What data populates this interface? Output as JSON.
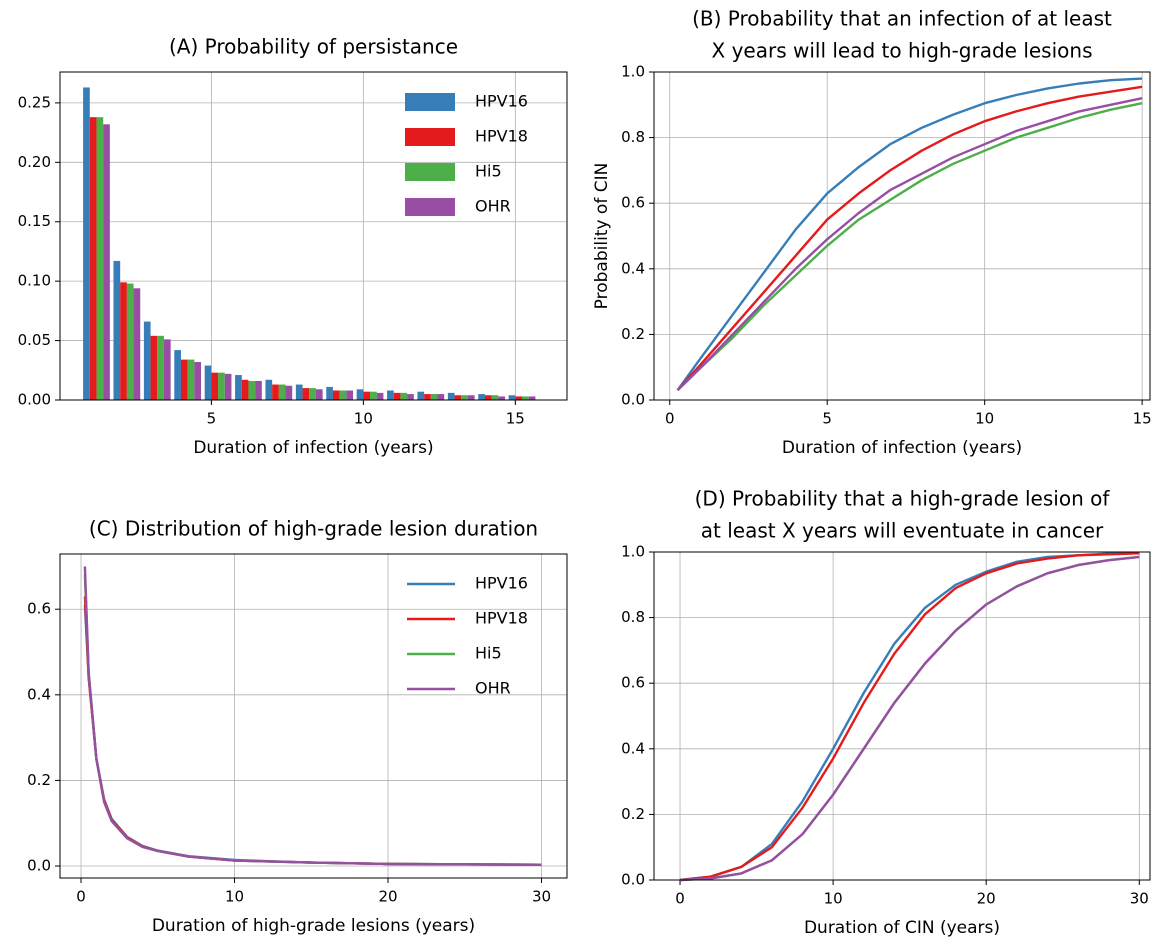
{
  "chart_data": [
    {
      "type": "bar",
      "title": "(A) Probability of persistance",
      "xlabel": "Duration of infection (years)",
      "x": [
        1,
        2,
        3,
        4,
        5,
        6,
        7,
        8,
        9,
        10,
        11,
        12,
        13,
        14,
        15
      ],
      "series": [
        {
          "name": "HPV16",
          "color": "#377eb8",
          "values": [
            0.263,
            0.117,
            0.066,
            0.042,
            0.029,
            0.021,
            0.017,
            0.013,
            0.011,
            0.009,
            0.008,
            0.007,
            0.006,
            0.005,
            0.004
          ]
        },
        {
          "name": "HPV18",
          "color": "#e41a1c",
          "values": [
            0.238,
            0.099,
            0.054,
            0.034,
            0.023,
            0.017,
            0.013,
            0.01,
            0.008,
            0.007,
            0.006,
            0.005,
            0.004,
            0.004,
            0.003
          ]
        },
        {
          "name": "Hi5",
          "color": "#4daf4a",
          "values": [
            0.238,
            0.098,
            0.054,
            0.034,
            0.023,
            0.016,
            0.013,
            0.01,
            0.008,
            0.007,
            0.006,
            0.005,
            0.004,
            0.004,
            0.003
          ]
        },
        {
          "name": "OHR",
          "color": "#984ea3",
          "values": [
            0.232,
            0.094,
            0.051,
            0.032,
            0.022,
            0.016,
            0.012,
            0.009,
            0.008,
            0.006,
            0.005,
            0.005,
            0.004,
            0.003,
            0.003
          ]
        }
      ],
      "xlim": [
        0.02,
        16.7
      ],
      "ylim": [
        0,
        0.276
      ],
      "xticks": [
        5,
        10,
        15
      ],
      "yticks": [
        {
          "value": 0,
          "label": "0.00"
        },
        {
          "value": 0.05,
          "label": "0.05"
        },
        {
          "value": 0.1,
          "label": "0.10"
        },
        {
          "value": 0.15,
          "label": "0.15"
        },
        {
          "value": 0.2,
          "label": "0.20"
        },
        {
          "value": 0.25,
          "label": "0.25"
        }
      ],
      "grid": true,
      "legend": "upper right"
    },
    {
      "type": "line",
      "title": [
        "(B) Probability that an infection of at least",
        "X years will lead to high-grade lesions"
      ],
      "xlabel": "Duration of infection (years)",
      "ylabel": "Probability of CIN",
      "x": [
        0.25,
        1,
        2,
        3,
        4,
        5,
        6,
        7,
        8,
        9,
        10,
        11,
        12,
        13,
        14,
        15
      ],
      "series": [
        {
          "name": "HPV16",
          "color": "#377eb8",
          "values": [
            0.03,
            0.13,
            0.26,
            0.39,
            0.52,
            0.63,
            0.71,
            0.78,
            0.83,
            0.87,
            0.905,
            0.93,
            0.95,
            0.965,
            0.975,
            0.98
          ]
        },
        {
          "name": "HPV18",
          "color": "#e41a1c",
          "values": [
            0.03,
            0.11,
            0.22,
            0.33,
            0.44,
            0.55,
            0.63,
            0.7,
            0.76,
            0.81,
            0.85,
            0.88,
            0.905,
            0.925,
            0.94,
            0.955
          ]
        },
        {
          "name": "Hi5",
          "color": "#4daf4a",
          "values": [
            0.03,
            0.1,
            0.19,
            0.29,
            0.38,
            0.47,
            0.55,
            0.61,
            0.67,
            0.72,
            0.76,
            0.8,
            0.83,
            0.86,
            0.885,
            0.905
          ]
        },
        {
          "name": "OHR",
          "color": "#984ea3",
          "values": [
            0.03,
            0.1,
            0.2,
            0.3,
            0.4,
            0.49,
            0.57,
            0.64,
            0.69,
            0.74,
            0.78,
            0.82,
            0.85,
            0.88,
            0.9,
            0.92
          ]
        }
      ],
      "xlim": [
        -0.5,
        15.25
      ],
      "ylim": [
        0,
        1
      ],
      "xticks": [
        0,
        5,
        10,
        15
      ],
      "yticks": [
        {
          "value": 0,
          "label": "0.0"
        },
        0.2,
        0.4,
        0.6,
        0.8,
        {
          "value": 1,
          "label": "1.0"
        }
      ],
      "grid": true
    },
    {
      "type": "line",
      "title": "(C) Distribution of high-grade lesion duration",
      "xlabel": "Duration of high-grade lesions (years)",
      "x": [
        0.25,
        0.5,
        1,
        1.5,
        2,
        3,
        4,
        5,
        7,
        10,
        15,
        20,
        25,
        30
      ],
      "series": [
        {
          "name": "HPV16",
          "color": "#377eb8",
          "values": [
            0.61,
            0.44,
            0.25,
            0.155,
            0.11,
            0.068,
            0.047,
            0.036,
            0.023,
            0.014,
            0.008,
            0.005,
            0.004,
            0.003
          ]
        },
        {
          "name": "HPV18",
          "color": "#e41a1c",
          "values": [
            0.63,
            0.44,
            0.25,
            0.155,
            0.108,
            0.067,
            0.046,
            0.035,
            0.022,
            0.013,
            0.008,
            0.005,
            0.004,
            0.003
          ]
        },
        {
          "name": "Hi5",
          "color": "#4daf4a",
          "values": [
            0.68,
            0.45,
            0.25,
            0.15,
            0.105,
            0.065,
            0.045,
            0.035,
            0.022,
            0.013,
            0.008,
            0.005,
            0.004,
            0.003
          ]
        },
        {
          "name": "OHR",
          "color": "#984ea3",
          "values": [
            0.7,
            0.45,
            0.25,
            0.15,
            0.105,
            0.065,
            0.045,
            0.035,
            0.022,
            0.013,
            0.008,
            0.005,
            0.004,
            0.003
          ]
        }
      ],
      "xlim": [
        -1.37,
        31.66
      ],
      "ylim": [
        -0.028,
        0.729
      ],
      "xticks": [
        0,
        10,
        20,
        30
      ],
      "yticks": [
        {
          "value": 0,
          "label": "0.0"
        },
        0.2,
        0.4,
        0.6
      ],
      "grid": true,
      "legend": "upper right"
    },
    {
      "type": "line",
      "title": [
        "(D) Probability that a high-grade lesion of",
        "at least X years will eventuate in cancer"
      ],
      "xlabel": "Duration of CIN (years)",
      "x": [
        0,
        2,
        4,
        6,
        8,
        10,
        12,
        14,
        16,
        18,
        20,
        22,
        24,
        26,
        28,
        30
      ],
      "series": [
        {
          "name": "HPV16",
          "color": "#377eb8",
          "values": [
            0,
            0.01,
            0.04,
            0.11,
            0.24,
            0.4,
            0.57,
            0.72,
            0.83,
            0.9,
            0.94,
            0.97,
            0.985,
            0.99,
            0.995,
            0.998
          ]
        },
        {
          "name": "HPV18",
          "color": "#e41a1c",
          "values": [
            0,
            0.01,
            0.04,
            0.1,
            0.22,
            0.37,
            0.54,
            0.69,
            0.81,
            0.89,
            0.935,
            0.965,
            0.98,
            0.99,
            0.993,
            0.996
          ]
        },
        {
          "name": "Hi5",
          "color": "#4daf4a",
          "values": [
            0,
            0.005,
            0.02,
            0.06,
            0.14,
            0.26,
            0.4,
            0.54,
            0.66,
            0.76,
            0.84,
            0.895,
            0.935,
            0.96,
            0.975,
            0.985
          ]
        },
        {
          "name": "OHR",
          "color": "#984ea3",
          "values": [
            0,
            0.005,
            0.02,
            0.06,
            0.14,
            0.26,
            0.4,
            0.54,
            0.66,
            0.76,
            0.84,
            0.895,
            0.935,
            0.96,
            0.975,
            0.985
          ]
        }
      ],
      "xlim": [
        -1.7,
        30.7
      ],
      "ylim": [
        0,
        1
      ],
      "xticks": [
        0,
        10,
        20,
        30
      ],
      "yticks": [
        {
          "value": 0,
          "label": "0.0"
        },
        0.2,
        0.4,
        0.6,
        0.8,
        {
          "value": 1,
          "label": "1.0"
        }
      ],
      "grid": true
    }
  ]
}
